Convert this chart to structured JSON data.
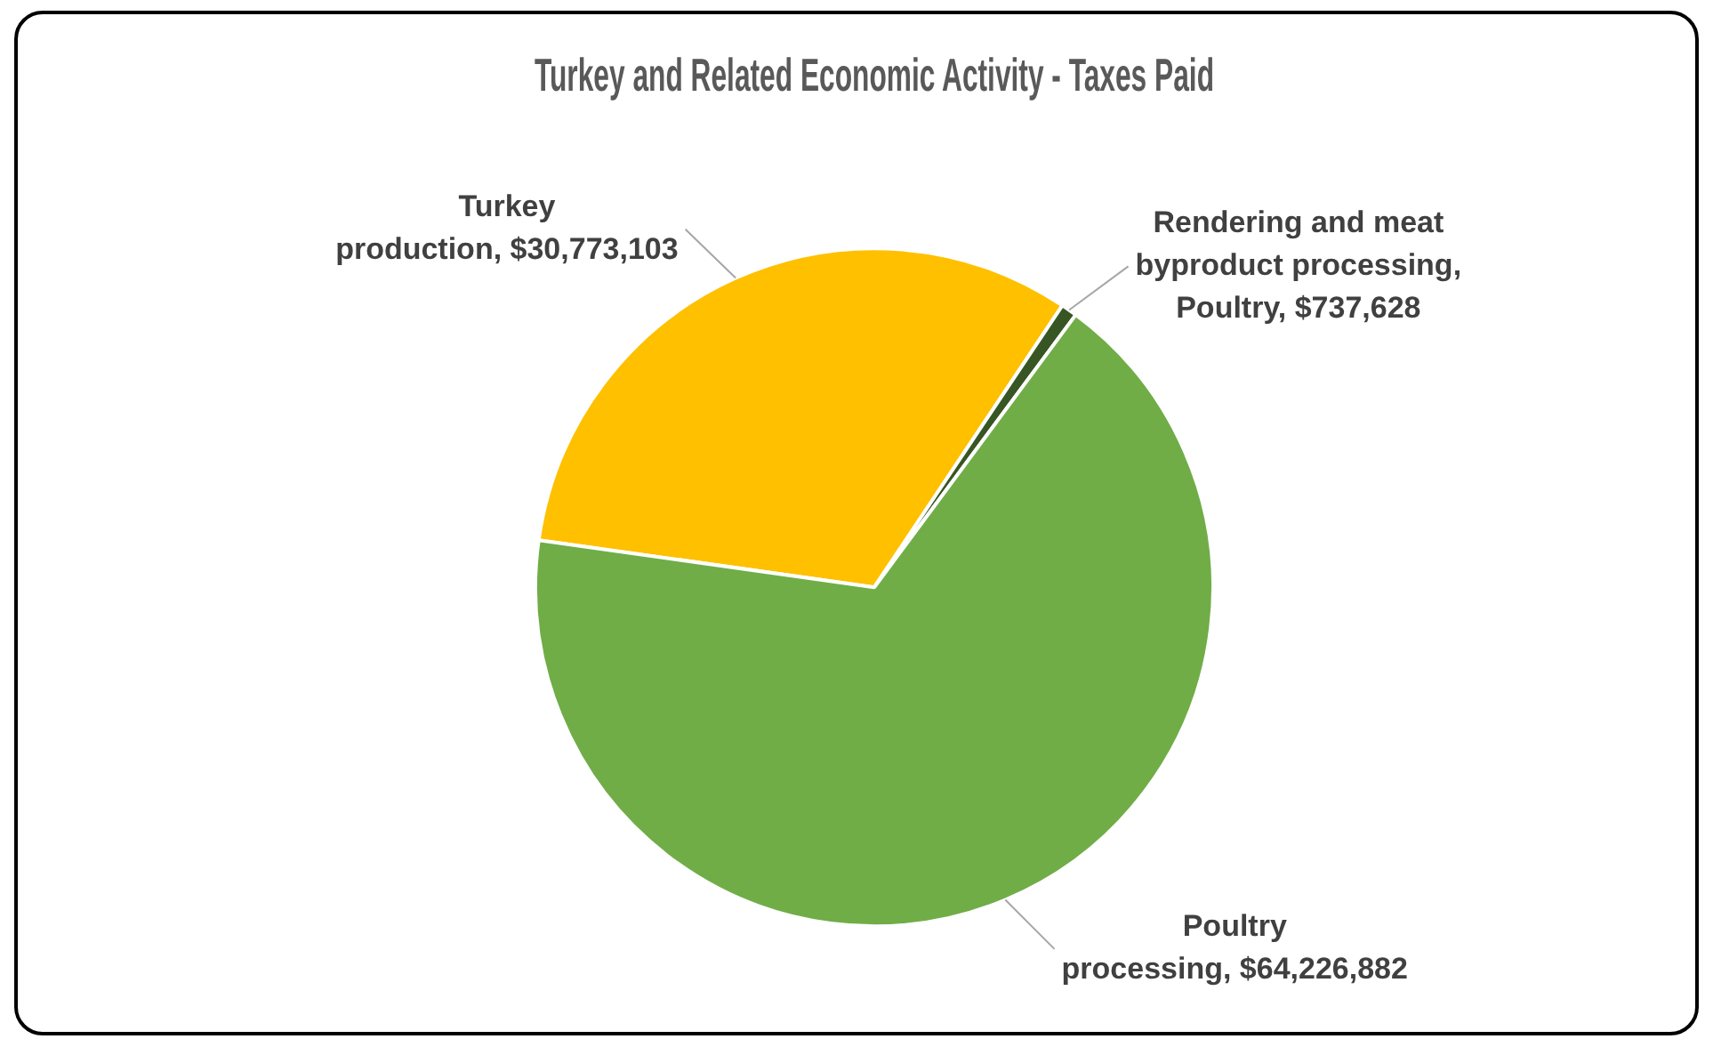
{
  "chart_data": {
    "type": "pie",
    "title": "Turkey and Related Economic Activity - Taxes Paid",
    "categories": [
      "Turkey production",
      "Rendering and meat byproduct processing, Poultry",
      "Poultry processing"
    ],
    "values": [
      30773103,
      737628,
      64226882
    ],
    "value_labels": [
      "$30,773,103",
      "$737,628",
      "$64,226,882"
    ],
    "colors": [
      "#ffc000",
      "#375623",
      "#70ad47"
    ],
    "legend": false
  }
}
